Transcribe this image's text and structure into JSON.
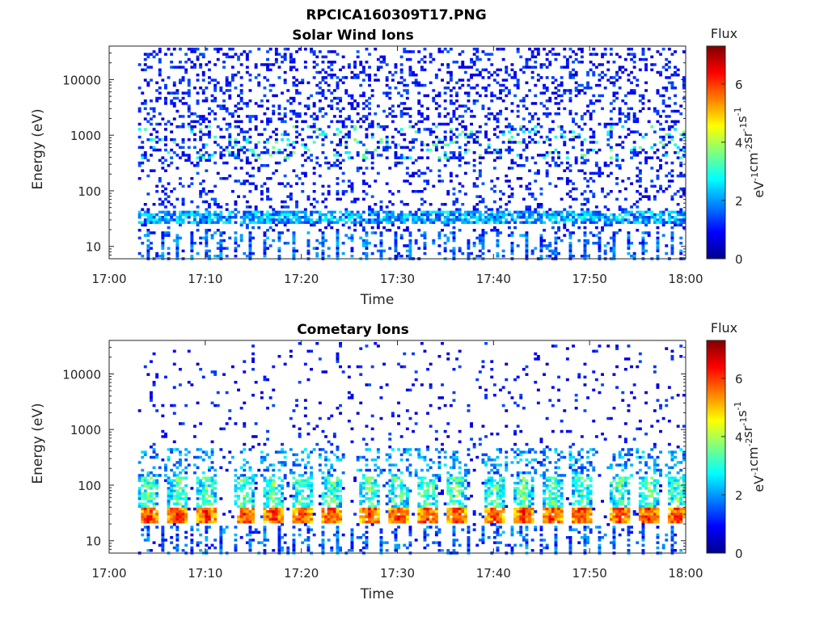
{
  "figure": {
    "filename_title": "RPCICA160309T17.PNG"
  },
  "chart_data": [
    {
      "type": "heatmap",
      "title": "Solar Wind Ions",
      "xlabel": "Time",
      "ylabel": "Energy (eV)",
      "x_ticks": [
        "17:00",
        "17:10",
        "17:20",
        "17:30",
        "17:40",
        "17:50",
        "18:00"
      ],
      "xlim": [
        "17:00",
        "18:00"
      ],
      "y_scale": "log",
      "y_ticks": [
        10,
        100,
        1000,
        10000
      ],
      "y_tick_labels": [
        "10",
        "100",
        "1000",
        "10000"
      ],
      "ylim": [
        6,
        40000
      ],
      "data_start": "17:03",
      "colorbar": {
        "title": "Flux",
        "unit": "eV-1cm-2sr-1s-1",
        "ticks": [
          "0",
          "2",
          "4",
          "6"
        ],
        "range": [
          0,
          7.3
        ],
        "colormap": "jet"
      },
      "bands": [
        {
          "energy_eV": 35,
          "intensity": 2.6,
          "note": "persistent low-energy band"
        },
        {
          "energy_eV": 700,
          "intensity": 3.5,
          "note": "intermittent solar wind patches"
        }
      ]
    },
    {
      "type": "heatmap",
      "title": "Cometary Ions",
      "xlabel": "Time",
      "ylabel": "Energy (eV)",
      "x_ticks": [
        "17:00",
        "17:10",
        "17:20",
        "17:30",
        "17:40",
        "17:50",
        "18:00"
      ],
      "xlim": [
        "17:00",
        "18:00"
      ],
      "y_scale": "log",
      "y_ticks": [
        10,
        100,
        1000,
        10000
      ],
      "y_tick_labels": [
        "10",
        "100",
        "1000",
        "10000"
      ],
      "ylim": [
        6,
        40000
      ],
      "data_start": "17:03",
      "colorbar": {
        "title": "Flux",
        "unit": "eV-1cm-2sr-1s-1",
        "ticks": [
          "0",
          "2",
          "4",
          "6"
        ],
        "range": [
          0,
          7.3
        ],
        "colormap": "jet"
      },
      "bands": [
        {
          "energy_eV": 30,
          "intensity": 6.3,
          "note": "periodic high-flux bursts near 30 eV"
        }
      ],
      "burst_times": [
        "17:04",
        "17:07",
        "17:10",
        "17:14",
        "17:17",
        "17:20",
        "17:23",
        "17:27",
        "17:30",
        "17:33",
        "17:36",
        "17:40",
        "17:43",
        "17:46",
        "17:49",
        "17:53",
        "17:56",
        "17:59"
      ]
    }
  ]
}
